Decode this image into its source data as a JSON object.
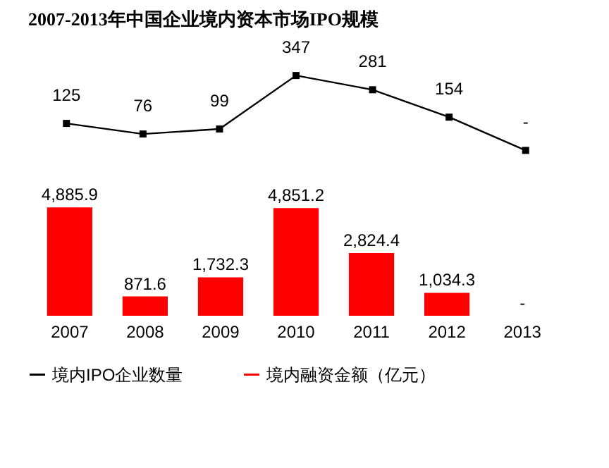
{
  "chart_data": [
    {
      "type": "line",
      "title": "2007-2013年中国企业境内资本市场IPO规模",
      "categories": [
        "2007",
        "2008",
        "2009",
        "2010",
        "2011",
        "2012",
        "2013"
      ],
      "tick_labels": false,
      "marker": "square",
      "series": [
        {
          "name": "境内IPO企业数量",
          "color": "#000000",
          "values": [
            125,
            76,
            99,
            347,
            281,
            154,
            0
          ],
          "value_labels": [
            "125",
            "76",
            "99",
            "347",
            "281",
            "154",
            "-"
          ]
        }
      ]
    },
    {
      "type": "bar",
      "categories": [
        "2007",
        "2008",
        "2009",
        "2010",
        "2011",
        "2012",
        "2013"
      ],
      "legend": "bottom",
      "series": [
        {
          "name": "境内融资金额（亿元）",
          "color": "#ff0000",
          "values": [
            4885.9,
            871.6,
            1732.3,
            4851.2,
            2824.4,
            1034.3,
            0
          ],
          "value_labels": [
            "4,885.9",
            "871.6",
            "1,732.3",
            "4,851.2",
            "2,824.4",
            "1,034.3",
            "-"
          ]
        }
      ]
    }
  ]
}
